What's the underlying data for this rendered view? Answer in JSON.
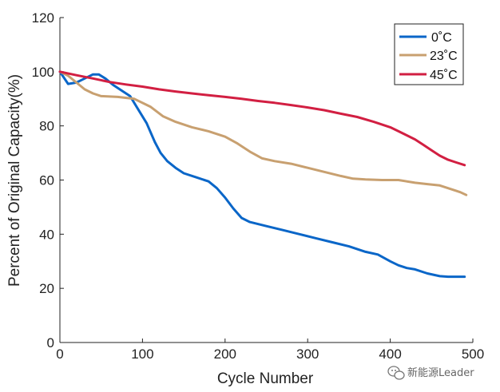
{
  "chart_data": {
    "type": "line",
    "title": "",
    "xlabel": "Cycle Number",
    "ylabel": "Percent of Original Capacity(%)",
    "xlim": [
      0,
      500
    ],
    "ylim": [
      0,
      120
    ],
    "xticks": [
      0,
      100,
      200,
      300,
      400,
      500
    ],
    "yticks": [
      0,
      20,
      40,
      60,
      80,
      100,
      120
    ],
    "grid": false,
    "legend_position": "top-right",
    "series": [
      {
        "name": "0˚C",
        "color": "#0a66c8",
        "x": [
          0,
          10,
          20,
          30,
          40,
          47,
          55,
          65,
          75,
          85,
          95,
          105,
          115,
          122,
          130,
          140,
          150,
          165,
          180,
          190,
          200,
          210,
          220,
          230,
          250,
          270,
          290,
          310,
          330,
          350,
          370,
          385,
          400,
          410,
          420,
          430,
          445,
          460,
          470,
          480,
          490
        ],
        "y": [
          100,
          95.5,
          96,
          97.5,
          99,
          99,
          97.5,
          95,
          93,
          91,
          86,
          81,
          74,
          70,
          67,
          64.5,
          62.5,
          61,
          59.5,
          57,
          53.5,
          49.5,
          46,
          44.5,
          43,
          41.5,
          40,
          38.5,
          37,
          35.5,
          33.5,
          32.5,
          30,
          28.5,
          27.5,
          27,
          25.5,
          24.5,
          24.3,
          24.3,
          24.3
        ]
      },
      {
        "name": "23˚C",
        "color": "#c8a070",
        "x": [
          0,
          10,
          20,
          30,
          40,
          50,
          70,
          90,
          110,
          125,
          140,
          160,
          180,
          200,
          215,
          230,
          245,
          260,
          280,
          300,
          320,
          340,
          355,
          370,
          390,
          410,
          430,
          445,
          460,
          470,
          480,
          485,
          492
        ],
        "y": [
          100,
          98.5,
          96,
          93.5,
          92,
          91,
          90.7,
          90,
          87,
          83.5,
          81.5,
          79.5,
          78,
          76,
          73.5,
          70.5,
          68,
          67,
          66,
          64.5,
          63,
          61.5,
          60.5,
          60.2,
          60,
          60,
          59,
          58.5,
          58,
          57,
          56,
          55.5,
          54.5
        ]
      },
      {
        "name": "45˚C",
        "color": "#d21f42",
        "x": [
          0,
          20,
          40,
          60,
          80,
          100,
          120,
          140,
          160,
          180,
          200,
          220,
          240,
          260,
          280,
          300,
          320,
          340,
          360,
          380,
          400,
          410,
          420,
          430,
          440,
          450,
          460,
          470,
          480,
          490
        ],
        "y": [
          100,
          98.7,
          97.5,
          96.2,
          95.3,
          94.5,
          93.5,
          92.7,
          92,
          91.3,
          90.7,
          90,
          89.2,
          88.5,
          87.7,
          86.8,
          85.8,
          84.5,
          83.3,
          81.5,
          79.5,
          78,
          76.5,
          75,
          73,
          71,
          69,
          67.5,
          66.5,
          65.5
        ]
      }
    ]
  },
  "watermark": {
    "text": "新能源Leader",
    "icon": "wechat-icon"
  }
}
